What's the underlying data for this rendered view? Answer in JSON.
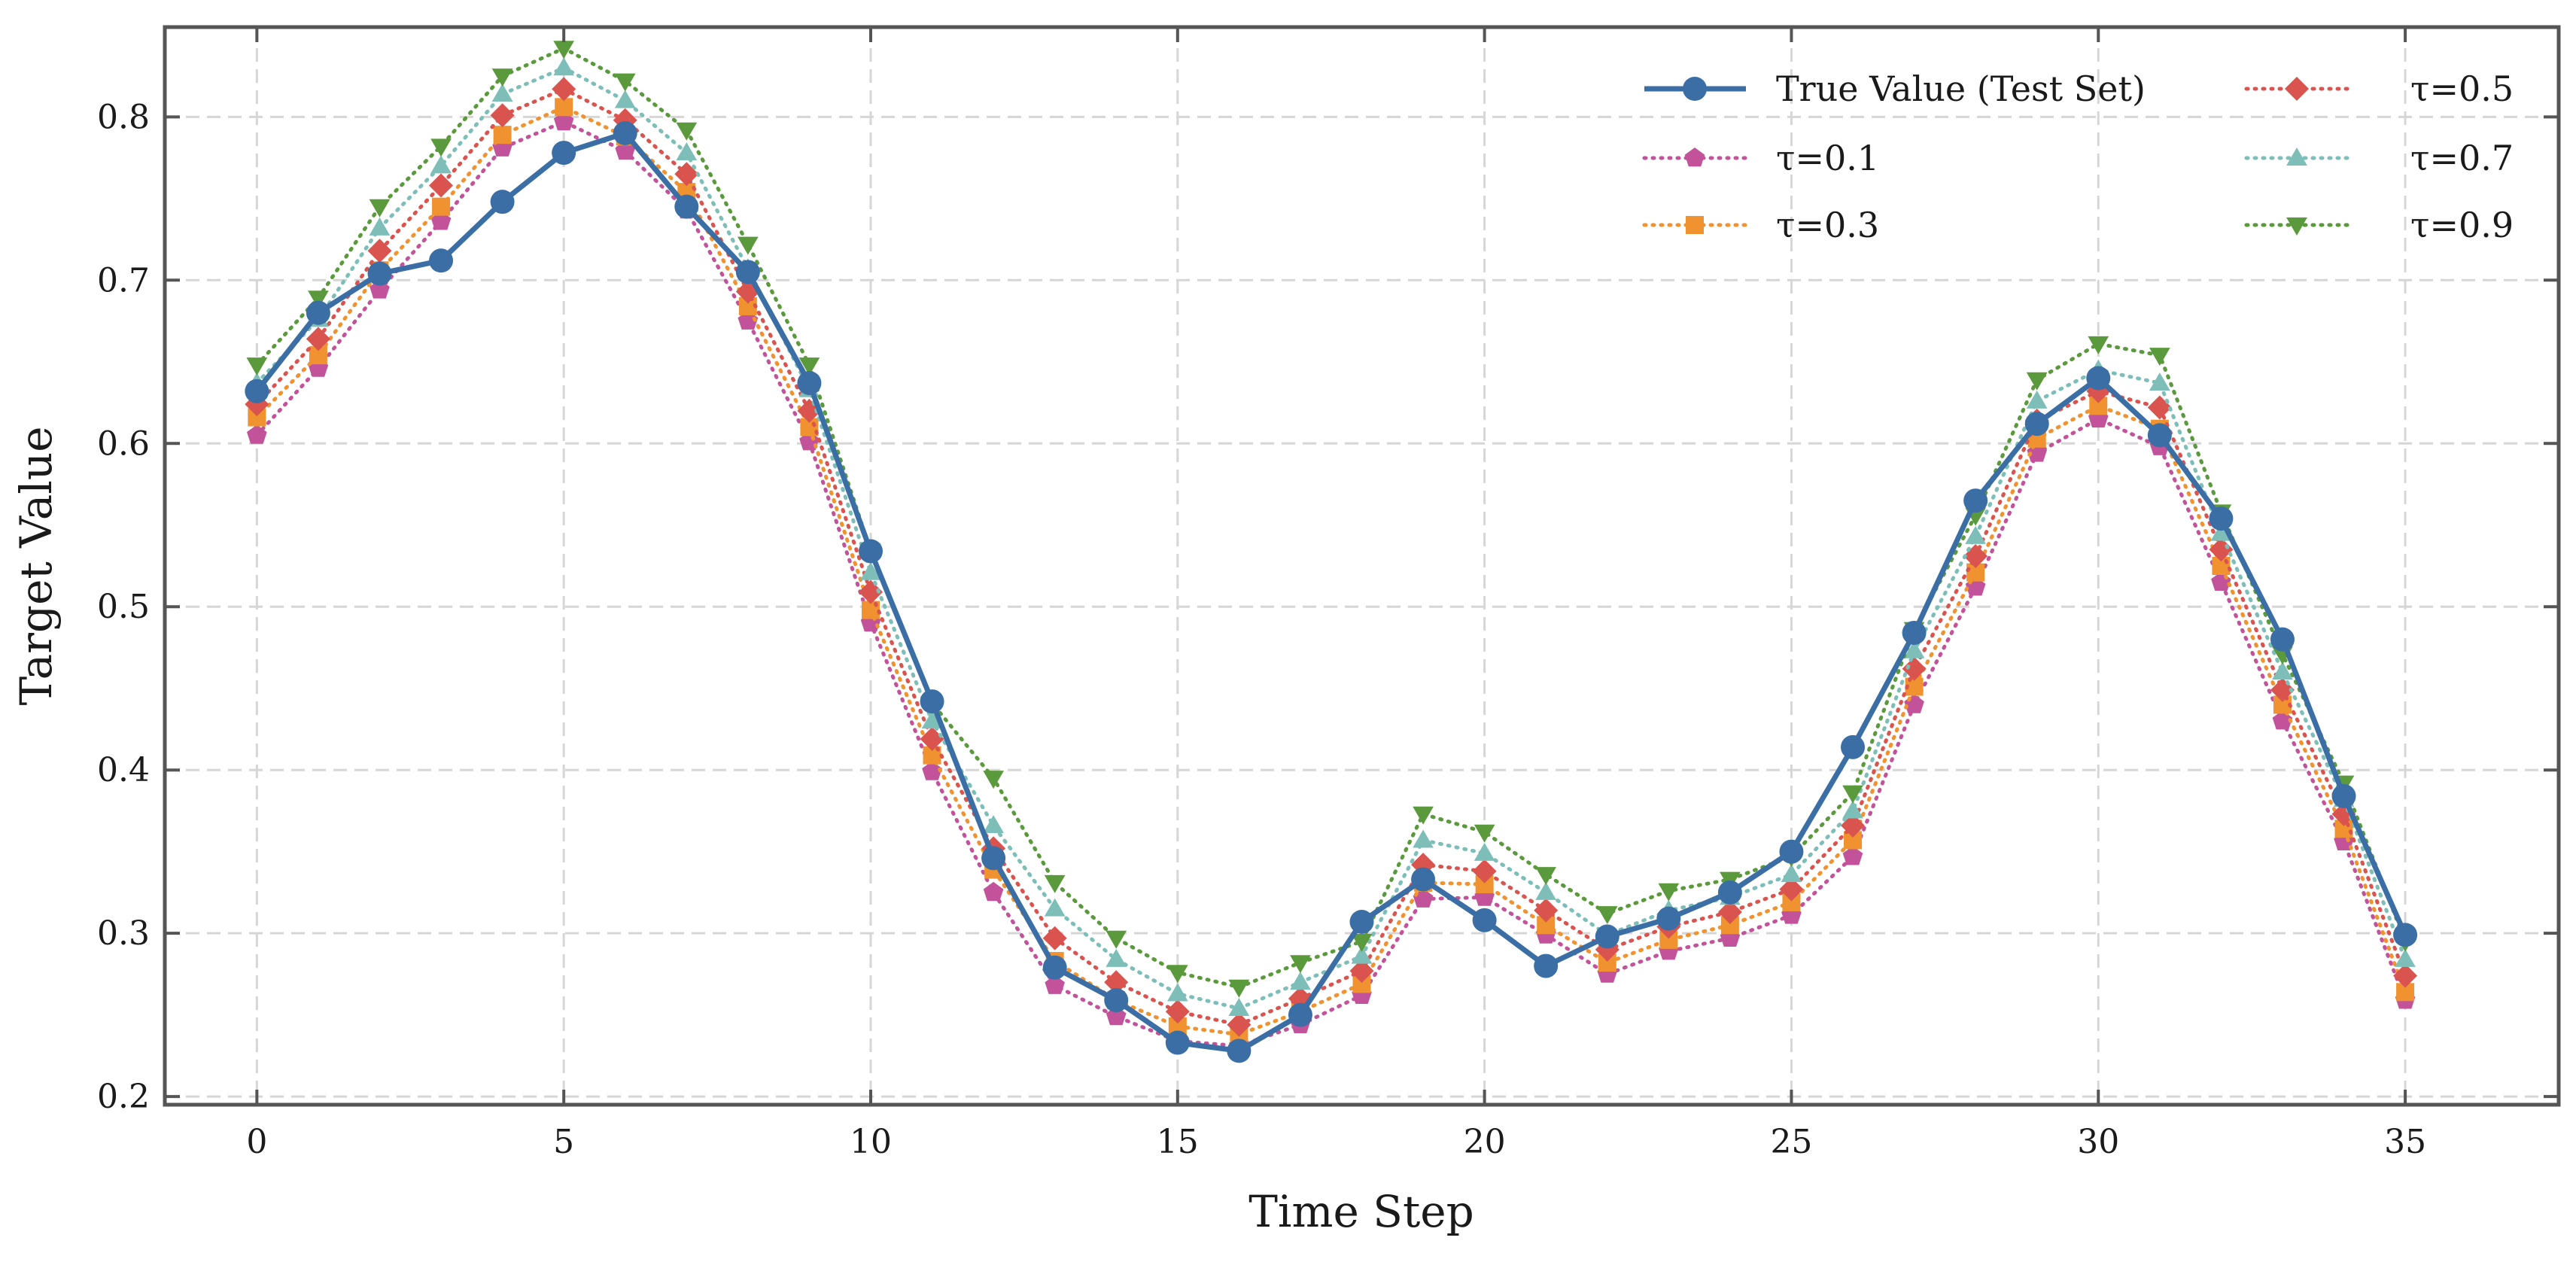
{
  "chart_data": {
    "type": "line",
    "xlabel": "Time Step",
    "ylabel": "Target Value",
    "xlim": [
      -1.5,
      37.5
    ],
    "ylim": [
      0.195,
      0.855
    ],
    "xticks": [
      0,
      5,
      10,
      15,
      20,
      25,
      30,
      35
    ],
    "yticks": [
      0.2,
      0.3,
      0.4,
      0.5,
      0.6,
      0.7,
      0.8
    ],
    "ytick_labels": [
      "0.2",
      "0.3",
      "0.4",
      "0.5",
      "0.6",
      "0.7",
      "0.8"
    ],
    "grid": true,
    "legend_position": "top-right",
    "legend_columns": 2,
    "x": [
      0,
      1,
      2,
      3,
      4,
      5,
      6,
      7,
      8,
      9,
      10,
      11,
      12,
      13,
      14,
      15,
      16,
      17,
      18,
      19,
      20,
      21,
      22,
      23,
      24,
      25,
      26,
      27,
      28,
      29,
      30,
      31,
      32,
      33,
      34,
      35
    ],
    "series": [
      {
        "name": "True Value (Test Set)",
        "color": "#3a6ea5",
        "linestyle": "solid",
        "marker": "circle",
        "values": [
          0.632,
          0.68,
          0.704,
          0.712,
          0.748,
          0.778,
          0.79,
          0.745,
          0.705,
          0.637,
          0.534,
          0.442,
          0.346,
          0.279,
          0.259,
          0.233,
          0.228,
          0.25,
          0.307,
          0.333,
          0.308,
          0.28,
          0.298,
          0.309,
          0.325,
          0.35,
          0.414,
          0.484,
          0.565,
          0.612,
          0.64,
          0.605,
          0.554,
          0.48,
          0.384,
          0.299
        ]
      },
      {
        "name": "τ=0.1",
        "color": "#c2539a",
        "linestyle": "dotted",
        "marker": "pentagon",
        "values": [
          0.605,
          0.646,
          0.694,
          0.736,
          0.781,
          0.797,
          0.779,
          0.743,
          0.675,
          0.601,
          0.49,
          0.399,
          0.325,
          0.268,
          0.249,
          0.234,
          0.231,
          0.244,
          0.262,
          0.321,
          0.322,
          0.299,
          0.275,
          0.289,
          0.297,
          0.311,
          0.347,
          0.44,
          0.512,
          0.594,
          0.615,
          0.598,
          0.515,
          0.43,
          0.356,
          0.259
        ]
      },
      {
        "name": "τ=0.3",
        "color": "#f0922f",
        "linestyle": "dotted",
        "marker": "square",
        "values": [
          0.616,
          0.654,
          0.706,
          0.745,
          0.789,
          0.806,
          0.788,
          0.754,
          0.684,
          0.61,
          0.498,
          0.409,
          0.339,
          0.283,
          0.259,
          0.243,
          0.238,
          0.252,
          0.269,
          0.331,
          0.33,
          0.305,
          0.282,
          0.296,
          0.305,
          0.319,
          0.357,
          0.451,
          0.521,
          0.603,
          0.623,
          0.609,
          0.525,
          0.44,
          0.364,
          0.264
        ]
      },
      {
        "name": "τ=0.5",
        "color": "#d9534f",
        "linestyle": "dotted",
        "marker": "diamond",
        "values": [
          0.624,
          0.664,
          0.718,
          0.758,
          0.801,
          0.817,
          0.798,
          0.765,
          0.693,
          0.62,
          0.509,
          0.419,
          0.352,
          0.297,
          0.27,
          0.252,
          0.244,
          0.26,
          0.277,
          0.342,
          0.338,
          0.314,
          0.29,
          0.304,
          0.313,
          0.327,
          0.366,
          0.462,
          0.531,
          0.614,
          0.632,
          0.622,
          0.535,
          0.449,
          0.373,
          0.274
        ]
      },
      {
        "name": "τ=0.7",
        "color": "#7dbfb8",
        "linestyle": "dotted",
        "marker": "triangle-up",
        "values": [
          0.637,
          0.676,
          0.732,
          0.77,
          0.814,
          0.83,
          0.81,
          0.778,
          0.707,
          0.633,
          0.521,
          0.43,
          0.366,
          0.315,
          0.284,
          0.263,
          0.254,
          0.27,
          0.286,
          0.357,
          0.349,
          0.325,
          0.299,
          0.314,
          0.322,
          0.336,
          0.375,
          0.473,
          0.543,
          0.626,
          0.645,
          0.637,
          0.545,
          0.46,
          0.382,
          0.284
        ]
      },
      {
        "name": "τ=0.9",
        "color": "#5b9a3c",
        "linestyle": "dotted",
        "marker": "triangle-down",
        "values": [
          0.648,
          0.689,
          0.745,
          0.782,
          0.825,
          0.842,
          0.822,
          0.792,
          0.722,
          0.648,
          0.534,
          0.441,
          0.395,
          0.331,
          0.297,
          0.276,
          0.267,
          0.282,
          0.295,
          0.373,
          0.362,
          0.336,
          0.312,
          0.326,
          0.333,
          0.347,
          0.386,
          0.486,
          0.556,
          0.639,
          0.661,
          0.654,
          0.558,
          0.471,
          0.392,
          0.295
        ]
      }
    ]
  }
}
